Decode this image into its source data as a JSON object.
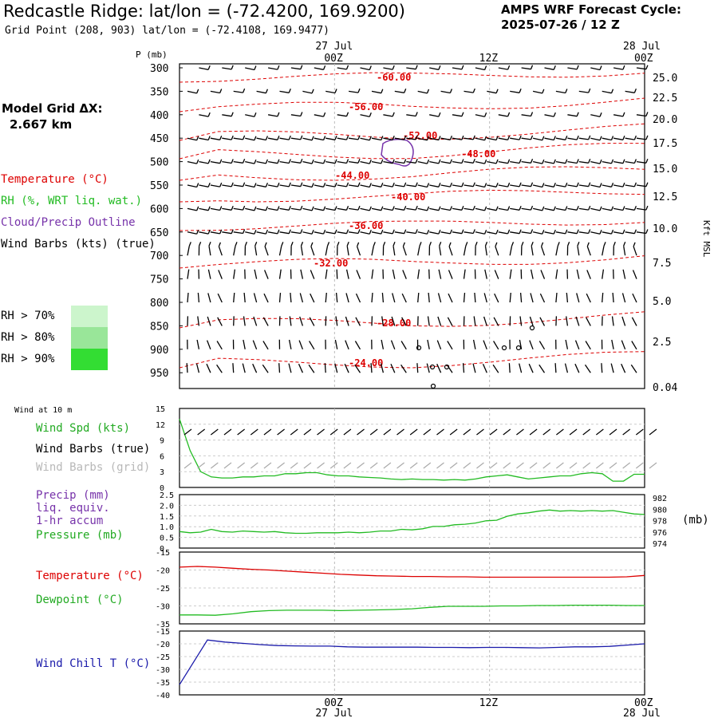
{
  "header": {
    "title": "Redcastle Ridge:  lat/lon = (-72.4200, 169.9200)",
    "grid_point": "Grid Point (208, 903) lat/lon = (-72.4108, 169.9477)",
    "cycle_line1": "AMPS WRF Forecast Cycle:",
    "cycle_line2": "2025-07-26 / 12  Z",
    "model_grid_label": "Model Grid ΔX:",
    "model_grid_value": "2.667 km"
  },
  "legend": {
    "temperature": "Temperature (°C)",
    "rh": "RH (%, WRT liq. wat.)",
    "cloud": "Cloud/Precip Outline",
    "wind": "Wind Barbs (kts) (true)",
    "rh70": "RH > 70%",
    "rh80": "RH > 80%",
    "rh90": "RH > 90%",
    "p_unit": "P (mb)",
    "kft": "Kft MSL",
    "colors": {
      "temperature": "#dd0000",
      "rh": "#22bb22",
      "cloud": "#7733aa",
      "rh70": "#ccf5cc",
      "rh80": "#99e699",
      "rh90": "#33dd33"
    }
  },
  "panels": {
    "wind10_title": "Wind at 10 m",
    "wind_spd": "Wind Spd (kts)",
    "barbs_true": "Wind Barbs (true)",
    "barbs_grid": "Wind Barbs (grid)",
    "precip": "Precip (mm)",
    "liq": "liq. equiv.",
    "accum": "1-hr accum",
    "pressure": "Pressure (mb)",
    "mb": "(mb)",
    "temp": "Temperature (°C)",
    "dew": "Dewpoint (°C)",
    "chill": "Wind Chill T (°C)"
  },
  "time_axis": {
    "top_dates": [
      "27 Jul",
      "28 Jul"
    ],
    "labels": [
      "00Z",
      "12Z",
      "00Z"
    ],
    "bottom_dates": [
      "27 Jul",
      "28 Jul"
    ]
  },
  "chart_data": [
    {
      "type": "line",
      "name": "cross-section",
      "ylabel": "P (mb)",
      "y_ticks": [
        "300",
        "350",
        "400",
        "450",
        "500",
        "550",
        "600",
        "650",
        "700",
        "750",
        "800",
        "850",
        "900",
        "950"
      ],
      "right_ticks": [
        "25.0",
        "22.5",
        "20.0",
        "17.5",
        "15.0",
        "12.5",
        "10.0",
        "7.5",
        "5.0",
        "2.5",
        "0.04"
      ],
      "isotherm_labels": [
        "-60.00",
        "-56.00",
        "-52.00",
        "-48.00",
        "-44.00",
        "-40.00",
        "-36.00",
        "-32.00",
        "-28.00",
        "-24.00"
      ],
      "xlim_hours": [
        -12,
        24
      ]
    },
    {
      "type": "line",
      "name": "wind10",
      "y_ticks": [
        "15",
        "12",
        "9",
        "6",
        "3",
        "0"
      ],
      "ylim": [
        0,
        15
      ],
      "wind_spd": [
        13,
        7,
        3,
        2,
        1.8,
        1.8,
        2,
        2,
        2.2,
        2.2,
        2.6,
        2.6,
        2.8,
        2.8,
        2.4,
        2.2,
        2.2,
        2,
        1.9,
        1.8,
        1.6,
        1.5,
        1.6,
        1.5,
        1.5,
        1.4,
        1.5,
        1.4,
        1.6,
        2,
        2.2,
        2.4,
        2,
        1.6,
        1.8,
        2,
        2.2,
        2.2,
        2.6,
        2.8,
        2.6,
        1.2,
        1.2,
        2.5,
        2.5
      ]
    },
    {
      "type": "line",
      "name": "precip-pressure",
      "y_ticks": [
        "2.5",
        "2.0",
        "1.5",
        "1.0",
        "0.5",
        "0"
      ],
      "right_ticks": [
        "982",
        "980",
        "978",
        "976",
        "974"
      ],
      "pressure_mb": [
        976.2,
        976.0,
        976.1,
        976.6,
        976.2,
        976.1,
        976.3,
        976.2,
        976.1,
        976.2,
        976.0,
        975.9,
        975.9,
        976.0,
        976.0,
        976.0,
        976.1,
        976.0,
        976.1,
        976.3,
        976.3,
        976.6,
        976.5,
        976.7,
        977.1,
        977.1,
        977.4,
        977.5,
        977.7,
        978.1,
        978.2,
        978.9,
        979.3,
        979.5,
        979.8,
        980.0,
        979.8,
        979.9,
        979.8,
        979.9,
        979.8,
        979.9,
        979.6,
        979.3,
        979.2
      ]
    },
    {
      "type": "line",
      "name": "temperature-dewpoint",
      "y_ticks": [
        "-15",
        "-20",
        "-25",
        "-30",
        "-35"
      ],
      "ylim": [
        -35,
        -15
      ],
      "temperature": [
        -19.2,
        -19.0,
        -19.2,
        -19.5,
        -19.8,
        -20.0,
        -20.3,
        -20.6,
        -20.9,
        -21.2,
        -21.4,
        -21.6,
        -21.7,
        -21.8,
        -21.8,
        -21.9,
        -21.9,
        -22.0,
        -22.0,
        -22.0,
        -22.0,
        -22.0,
        -22.0,
        -22.0,
        -22.0,
        -21.9,
        -21.5
      ],
      "dewpoint": [
        -32.5,
        -32.5,
        -32.6,
        -32.2,
        -31.6,
        -31.3,
        -31.2,
        -31.2,
        -31.2,
        -31.3,
        -31.2,
        -31.1,
        -31.0,
        -30.8,
        -30.4,
        -30.1,
        -30.1,
        -30.1,
        -30.0,
        -30.0,
        -29.9,
        -29.9,
        -29.8,
        -29.8,
        -29.8,
        -29.9,
        -29.9
      ]
    },
    {
      "type": "line",
      "name": "wind-chill",
      "y_ticks": [
        "-15",
        "-20",
        "-25",
        "-30",
        "-35",
        "-40"
      ],
      "ylim": [
        -40,
        -15
      ],
      "wind_chill": [
        -36,
        -18.5,
        -19.3,
        -19.8,
        -20.3,
        -20.7,
        -20.8,
        -20.9,
        -20.9,
        -21.2,
        -21.3,
        -21.3,
        -21.3,
        -21.3,
        -21.4,
        -21.4,
        -21.5,
        -21.4,
        -21.4,
        -21.5,
        -21.6,
        -21.4,
        -21.2,
        -21.2,
        -21.0,
        -20.5,
        -20.0
      ]
    }
  ]
}
